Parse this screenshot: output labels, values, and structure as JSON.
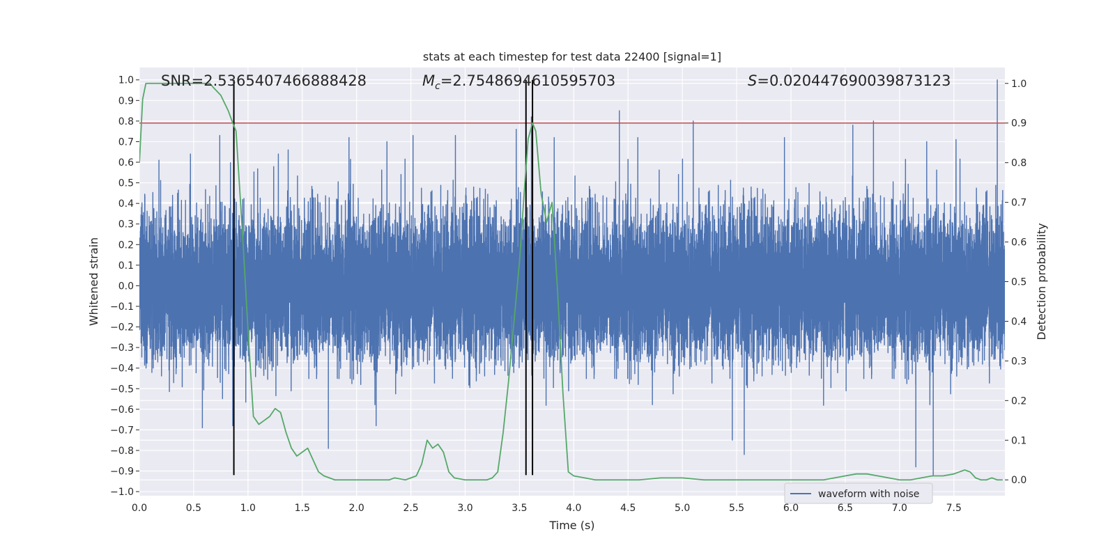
{
  "chart_data": {
    "type": "line",
    "title": "stats at each timestep for test data 22400 [signal=1]",
    "xlabel": "Time (s)",
    "ylabel": "Whitened strain",
    "y2label": "Detection probability",
    "xlim": [
      0.0,
      7.97
    ],
    "ylim": [
      -1.02,
      1.06
    ],
    "y2lim": [
      -0.04,
      1.04
    ],
    "x_ticks": [
      "0.0",
      "0.5",
      "1.0",
      "1.5",
      "2.0",
      "2.5",
      "3.0",
      "3.5",
      "4.0",
      "4.5",
      "5.0",
      "5.5",
      "6.0",
      "6.5",
      "7.0",
      "7.5"
    ],
    "y_ticks": [
      "1.0",
      "0.9",
      "0.8",
      "0.7",
      "0.6",
      "0.5",
      "0.4",
      "0.3",
      "0.2",
      "0.1",
      "0.0",
      "−0.1",
      "−0.2",
      "−0.3",
      "−0.4",
      "−0.5",
      "−0.6",
      "−0.7",
      "−0.8",
      "−0.9",
      "−1.0"
    ],
    "y2_ticks": [
      "1.0",
      "0.9",
      "0.8",
      "0.7",
      "0.6",
      "0.5",
      "0.4",
      "0.3",
      "0.2",
      "0.1",
      "0.0"
    ],
    "legend": {
      "location": "lower right",
      "entries": [
        "waveform with noise"
      ]
    },
    "annotations": {
      "snr": "SNR=2.5365407466888428",
      "mc_symbol": "M",
      "mc_sub": "c",
      "mc_value": "=2.7548694610595703",
      "s_symbol": "S",
      "s_value": "=0.020447690039873123"
    },
    "threshold": {
      "value": 0.9,
      "axis": "detection probability",
      "color": "#c44e52"
    },
    "event_lines_x": [
      0.87,
      3.56,
      3.62
    ],
    "waveform": {
      "name": "waveform with noise",
      "color": "#4c72b0",
      "sample_rate_hz": 2048,
      "noise_sigma": 0.17,
      "typical_peak": 0.5,
      "spikes": [
        {
          "x": 0.18,
          "y": 0.61
        },
        {
          "x": 0.47,
          "y": 0.64
        },
        {
          "x": 0.58,
          "y": -0.69
        },
        {
          "x": 0.74,
          "y": 0.73
        },
        {
          "x": 0.86,
          "y": -0.68
        },
        {
          "x": 1.28,
          "y": 0.64
        },
        {
          "x": 1.37,
          "y": 0.66
        },
        {
          "x": 1.74,
          "y": -0.79
        },
        {
          "x": 1.93,
          "y": 0.72
        },
        {
          "x": 2.18,
          "y": -0.68
        },
        {
          "x": 2.28,
          "y": 0.7
        },
        {
          "x": 2.52,
          "y": 0.73
        },
        {
          "x": 2.91,
          "y": 0.73
        },
        {
          "x": 3.47,
          "y": 0.76
        },
        {
          "x": 3.61,
          "y": 0.82
        },
        {
          "x": 3.82,
          "y": 0.72
        },
        {
          "x": 4.42,
          "y": 0.85
        },
        {
          "x": 4.59,
          "y": 0.72
        },
        {
          "x": 5.1,
          "y": 0.8
        },
        {
          "x": 5.46,
          "y": -0.75
        },
        {
          "x": 5.57,
          "y": -0.82
        },
        {
          "x": 5.94,
          "y": 0.72
        },
        {
          "x": 6.57,
          "y": 0.78
        },
        {
          "x": 6.76,
          "y": 0.8
        },
        {
          "x": 7.15,
          "y": -0.88
        },
        {
          "x": 7.31,
          "y": -0.92
        },
        {
          "x": 7.25,
          "y": 0.7
        },
        {
          "x": 7.52,
          "y": 0.71
        },
        {
          "x": 7.9,
          "y": 1.0
        }
      ]
    },
    "probability": {
      "name": "detection probability",
      "color": "#55a868",
      "x": [
        0.0,
        0.03,
        0.06,
        0.12,
        0.25,
        0.4,
        0.55,
        0.65,
        0.68,
        0.75,
        0.82,
        0.86,
        0.89,
        0.95,
        1.0,
        1.05,
        1.1,
        1.15,
        1.2,
        1.25,
        1.3,
        1.35,
        1.4,
        1.45,
        1.5,
        1.55,
        1.6,
        1.65,
        1.7,
        1.75,
        1.8,
        1.9,
        2.0,
        2.1,
        2.2,
        2.3,
        2.35,
        2.45,
        2.5,
        2.55,
        2.6,
        2.65,
        2.7,
        2.75,
        2.8,
        2.85,
        2.9,
        3.0,
        3.1,
        3.2,
        3.25,
        3.3,
        3.35,
        3.4,
        3.45,
        3.5,
        3.55,
        3.58,
        3.62,
        3.65,
        3.7,
        3.75,
        3.8,
        3.85,
        3.9,
        3.95,
        4.0,
        4.1,
        4.2,
        4.4,
        4.6,
        4.8,
        5.0,
        5.2,
        5.5,
        5.8,
        6.0,
        6.2,
        6.3,
        6.4,
        6.5,
        6.6,
        6.7,
        6.8,
        6.9,
        7.0,
        7.1,
        7.2,
        7.3,
        7.4,
        7.5,
        7.55,
        7.6,
        7.65,
        7.7,
        7.75,
        7.8,
        7.85,
        7.9,
        7.95
      ],
      "y": [
        0.8,
        0.96,
        1.0,
        1.0,
        1.0,
        1.0,
        1.0,
        1.0,
        0.99,
        0.97,
        0.93,
        0.9,
        0.88,
        0.62,
        0.38,
        0.16,
        0.14,
        0.15,
        0.16,
        0.18,
        0.17,
        0.12,
        0.08,
        0.06,
        0.07,
        0.08,
        0.05,
        0.02,
        0.01,
        0.005,
        0.0,
        0.0,
        0.0,
        0.0,
        0.0,
        0.0,
        0.005,
        0.0,
        0.005,
        0.01,
        0.04,
        0.1,
        0.08,
        0.09,
        0.07,
        0.02,
        0.005,
        0.0,
        0.0,
        0.0,
        0.005,
        0.02,
        0.12,
        0.25,
        0.4,
        0.55,
        0.75,
        0.86,
        0.9,
        0.88,
        0.72,
        0.65,
        0.7,
        0.48,
        0.22,
        0.02,
        0.01,
        0.005,
        0.0,
        0.0,
        0.0,
        0.005,
        0.005,
        0.0,
        0.0,
        0.0,
        0.0,
        0.0,
        0.0,
        0.005,
        0.01,
        0.015,
        0.015,
        0.01,
        0.005,
        0.0,
        0.0,
        0.005,
        0.01,
        0.01,
        0.015,
        0.02,
        0.025,
        0.02,
        0.005,
        0.0,
        0.0,
        0.005,
        0.0,
        0.0
      ]
    }
  }
}
